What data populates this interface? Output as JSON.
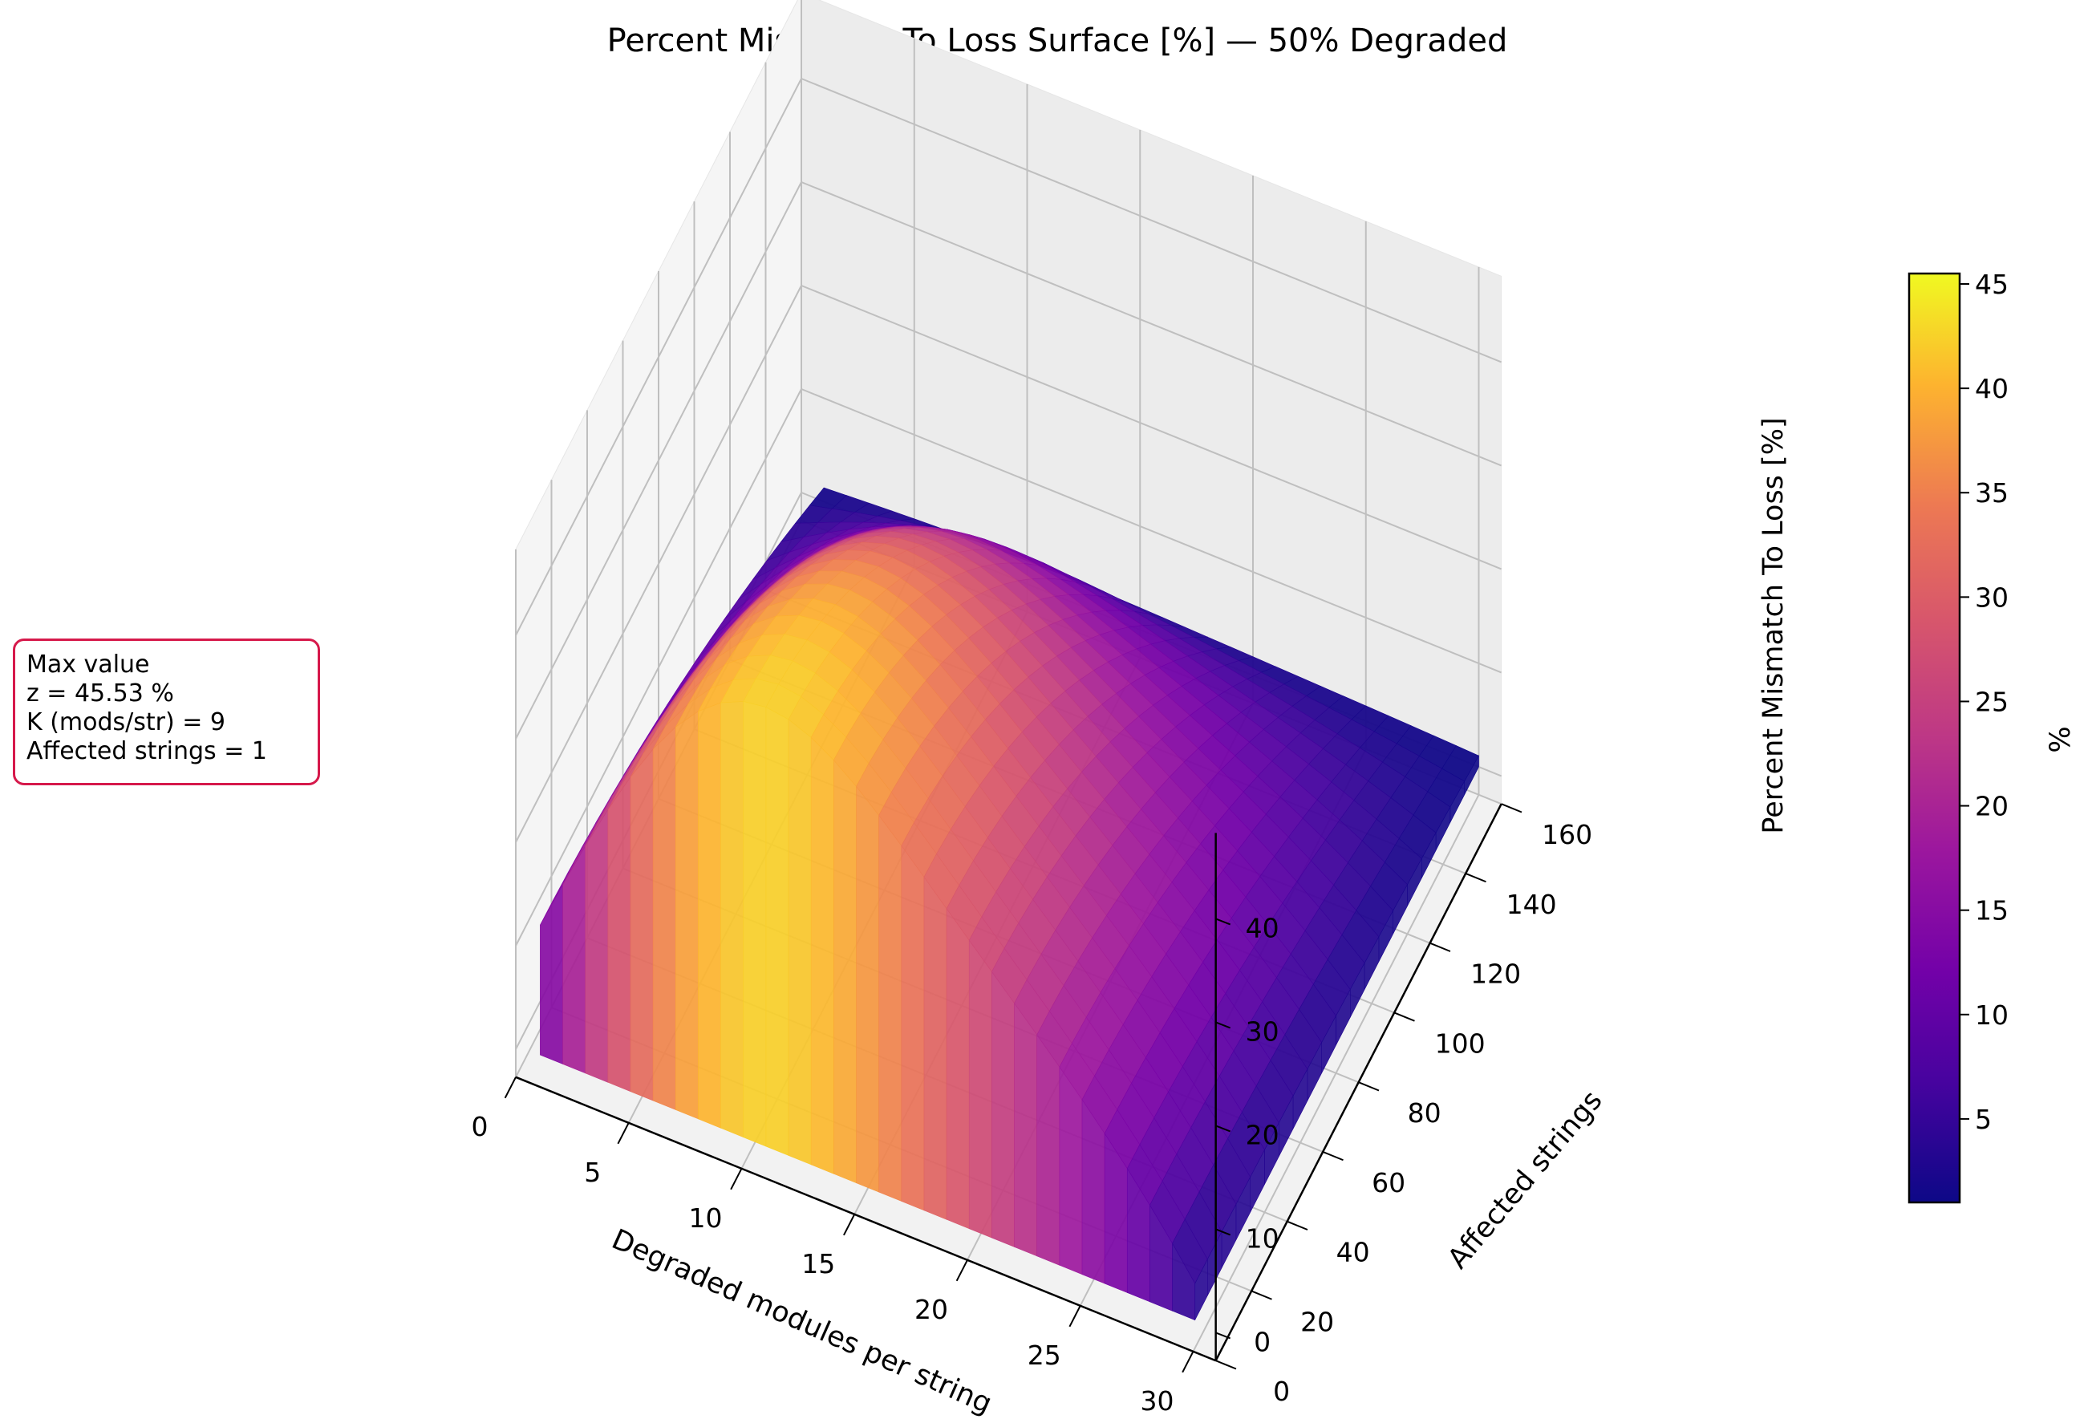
{
  "chart_data": {
    "type": "surface",
    "title": "Percent Mismatch To Loss Surface [%] — 50% Degraded",
    "xlabel": "Degraded modules per string",
    "ylabel": "Affected strings",
    "zlabel": "Percent Mismatch To Loss [%]",
    "xlim": [
      0,
      31
    ],
    "ylim": [
      0,
      160
    ],
    "zlim": [
      0,
      46
    ],
    "x_ticks": [
      "0",
      "5",
      "10",
      "15",
      "20",
      "25",
      "30"
    ],
    "y_ticks": [
      "0",
      "20",
      "40",
      "60",
      "80",
      "100",
      "120",
      "140",
      "160"
    ],
    "z_ticks": [
      "0",
      "10",
      "20",
      "30",
      "40"
    ],
    "grid": true,
    "colormap": "plasma",
    "colorbar": {
      "label": "%",
      "range": [
        1,
        45.5
      ],
      "ticks": [
        "5",
        "10",
        "15",
        "20",
        "25",
        "30",
        "35",
        "40",
        "45"
      ]
    },
    "surface_description_values": {
      "x_range": [
        1,
        30
      ],
      "y_range": [
        1,
        160
      ],
      "peak": {
        "x": 9,
        "y": 1,
        "z": 45.53
      },
      "edge_low": {
        "x": 30,
        "y": 160,
        "z": 1
      }
    },
    "annotation": {
      "lines": [
        "Max value",
        "z = 45.53 %",
        "K (mods/str) = 9",
        "Affected strings = 1"
      ]
    },
    "colors": {
      "annotation_border": "#d6194b",
      "pane": "#f2f2f2",
      "grid": "#bfbfbf"
    }
  }
}
